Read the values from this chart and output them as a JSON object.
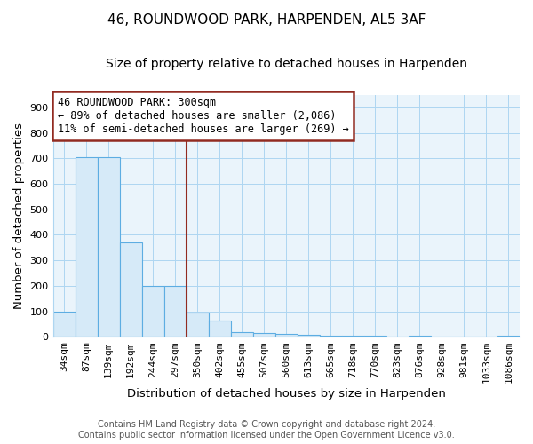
{
  "title": "46, ROUNDWOOD PARK, HARPENDEN, AL5 3AF",
  "subtitle": "Size of property relative to detached houses in Harpenden",
  "xlabel": "Distribution of detached houses by size in Harpenden",
  "ylabel": "Number of detached properties",
  "categories": [
    "34sqm",
    "87sqm",
    "139sqm",
    "192sqm",
    "244sqm",
    "297sqm",
    "350sqm",
    "402sqm",
    "455sqm",
    "507sqm",
    "560sqm",
    "613sqm",
    "665sqm",
    "718sqm",
    "770sqm",
    "823sqm",
    "876sqm",
    "928sqm",
    "981sqm",
    "1033sqm",
    "1086sqm"
  ],
  "values": [
    100,
    703,
    703,
    370,
    200,
    200,
    95,
    65,
    20,
    15,
    10,
    7,
    5,
    5,
    3,
    0,
    3,
    0,
    0,
    0,
    3
  ],
  "bar_color": "#d6eaf8",
  "bar_edge_color": "#5dade2",
  "property_line_index": 5,
  "property_line_color": "#922b21",
  "annotation_text": "46 ROUNDWOOD PARK: 300sqm\n← 89% of detached houses are smaller (2,086)\n11% of semi-detached houses are larger (269) →",
  "annotation_box_color": "#ffffff",
  "annotation_box_edge_color": "#922b21",
  "ylim": [
    0,
    950
  ],
  "yticks": [
    0,
    100,
    200,
    300,
    400,
    500,
    600,
    700,
    800,
    900
  ],
  "footer_line1": "Contains HM Land Registry data © Crown copyright and database right 2024.",
  "footer_line2": "Contains public sector information licensed under the Open Government Licence v3.0.",
  "plot_bg_color": "#eaf4fb",
  "background_color": "#ffffff",
  "grid_color": "#aed6f1",
  "title_fontsize": 11,
  "subtitle_fontsize": 10,
  "tick_fontsize": 8,
  "label_fontsize": 9.5,
  "annotation_fontsize": 8.5,
  "footer_fontsize": 7
}
